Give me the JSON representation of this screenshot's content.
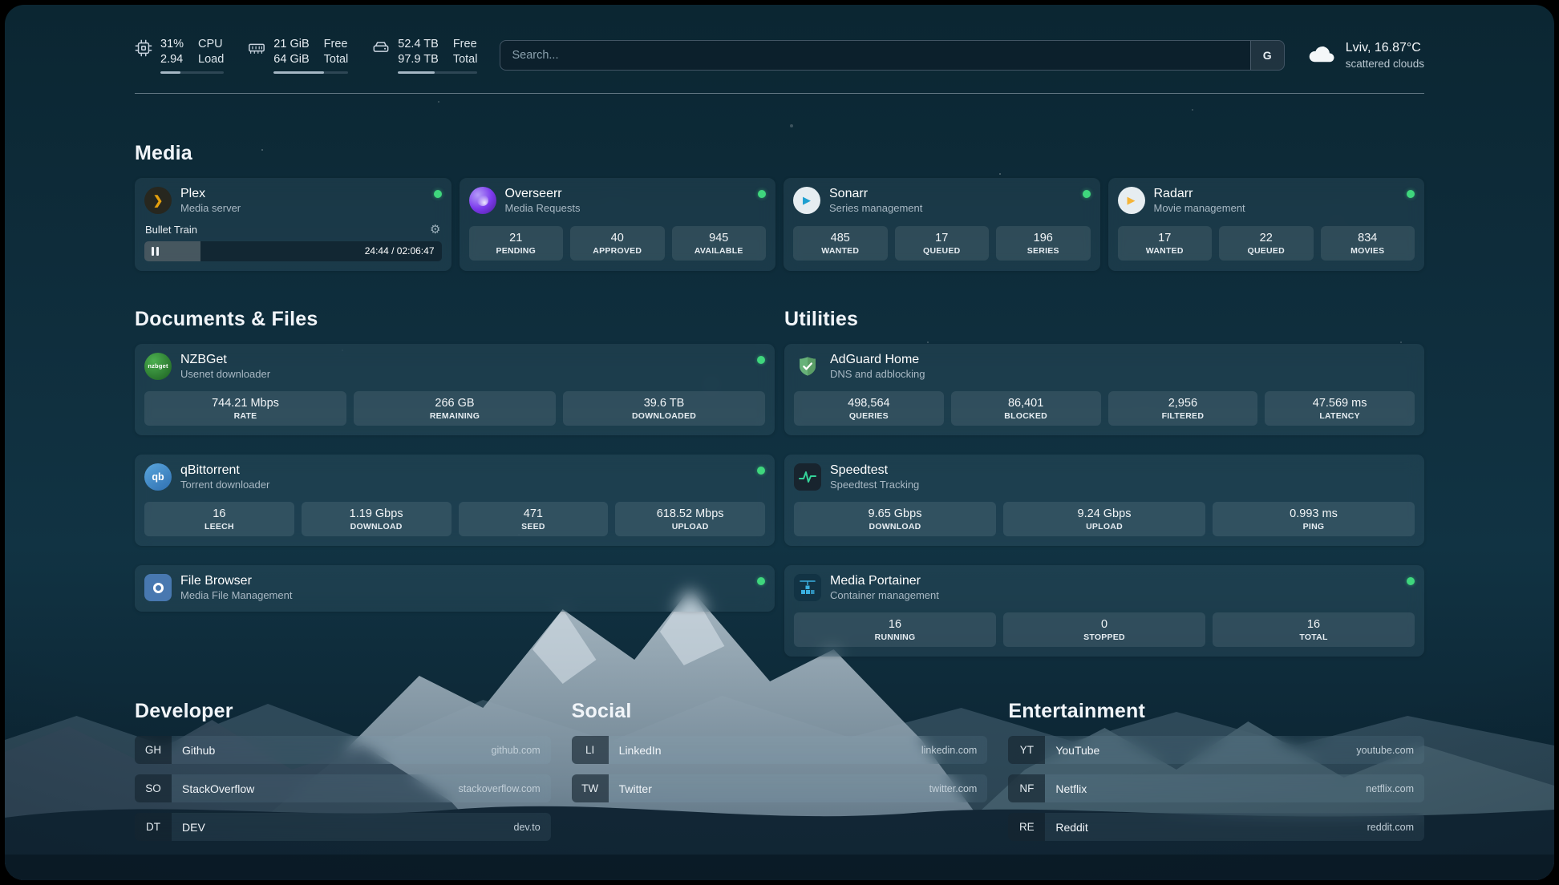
{
  "header": {
    "resources": {
      "cpu": {
        "value": "31%",
        "label": "CPU",
        "value2": "2.94",
        "label2": "Load",
        "percent": 31
      },
      "memory": {
        "value": "21 GiB",
        "label": "Free",
        "value2": "64 GiB",
        "label2": "Total",
        "percent": 67
      },
      "disk": {
        "value": "52.4 TB",
        "label": "Free",
        "value2": "97.9 TB",
        "label2": "Total",
        "percent": 46
      }
    },
    "search": {
      "placeholder": "Search...",
      "provider": "G"
    },
    "weather": {
      "location": "Lviv, 16.87°C",
      "condition": "scattered clouds"
    }
  },
  "sections": {
    "media": {
      "title": "Media",
      "services": [
        {
          "name": "Plex",
          "subtitle": "Media server",
          "status": "online",
          "now_playing": {
            "title": "Bullet Train",
            "time": "24:44 / 02:06:47",
            "state": "paused",
            "progress_percent": 19
          }
        },
        {
          "name": "Overseerr",
          "subtitle": "Media Requests",
          "status": "online",
          "stats": [
            {
              "value": "21",
              "label": "PENDING"
            },
            {
              "value": "40",
              "label": "APPROVED"
            },
            {
              "value": "945",
              "label": "AVAILABLE"
            }
          ]
        },
        {
          "name": "Sonarr",
          "subtitle": "Series management",
          "status": "online",
          "stats": [
            {
              "value": "485",
              "label": "WANTED"
            },
            {
              "value": "17",
              "label": "QUEUED"
            },
            {
              "value": "196",
              "label": "SERIES"
            }
          ]
        },
        {
          "name": "Radarr",
          "subtitle": "Movie management",
          "status": "online",
          "stats": [
            {
              "value": "17",
              "label": "WANTED"
            },
            {
              "value": "22",
              "label": "QUEUED"
            },
            {
              "value": "834",
              "label": "MOVIES"
            }
          ]
        }
      ]
    },
    "documents": {
      "title": "Documents & Files",
      "services": [
        {
          "name": "NZBGet",
          "subtitle": "Usenet downloader",
          "status": "online",
          "stats": [
            {
              "value": "744.21 Mbps",
              "label": "RATE"
            },
            {
              "value": "266 GB",
              "label": "REMAINING"
            },
            {
              "value": "39.6 TB",
              "label": "DOWNLOADED"
            }
          ]
        },
        {
          "name": "qBittorrent",
          "subtitle": "Torrent downloader",
          "status": "online",
          "stats": [
            {
              "value": "16",
              "label": "LEECH"
            },
            {
              "value": "1.19 Gbps",
              "label": "DOWNLOAD"
            },
            {
              "value": "471",
              "label": "SEED"
            },
            {
              "value": "618.52 Mbps",
              "label": "UPLOAD"
            }
          ]
        },
        {
          "name": "File Browser",
          "subtitle": "Media File Management",
          "status": "online",
          "stats": []
        }
      ]
    },
    "utilities": {
      "title": "Utilities",
      "services": [
        {
          "name": "AdGuard Home",
          "subtitle": "DNS and adblocking",
          "stats": [
            {
              "value": "498,564",
              "label": "QUERIES"
            },
            {
              "value": "86,401",
              "label": "BLOCKED"
            },
            {
              "value": "2,956",
              "label": "FILTERED"
            },
            {
              "value": "47.569 ms",
              "label": "LATENCY"
            }
          ]
        },
        {
          "name": "Speedtest",
          "subtitle": "Speedtest Tracking",
          "stats": [
            {
              "value": "9.65 Gbps",
              "label": "DOWNLOAD"
            },
            {
              "value": "9.24 Gbps",
              "label": "UPLOAD"
            },
            {
              "value": "0.993 ms",
              "label": "PING"
            }
          ]
        },
        {
          "name": "Media Portainer",
          "subtitle": "Container management",
          "status": "online",
          "stats": [
            {
              "value": "16",
              "label": "RUNNING"
            },
            {
              "value": "0",
              "label": "STOPPED"
            },
            {
              "value": "16",
              "label": "TOTAL"
            }
          ]
        }
      ]
    },
    "bookmarks": [
      {
        "title": "Developer",
        "items": [
          {
            "abbr": "GH",
            "name": "Github",
            "domain": "github.com"
          },
          {
            "abbr": "SO",
            "name": "StackOverflow",
            "domain": "stackoverflow.com"
          },
          {
            "abbr": "DT",
            "name": "DEV",
            "domain": "dev.to"
          }
        ]
      },
      {
        "title": "Social",
        "items": [
          {
            "abbr": "LI",
            "name": "LinkedIn",
            "domain": "linkedin.com"
          },
          {
            "abbr": "TW",
            "name": "Twitter",
            "domain": "twitter.com"
          }
        ]
      },
      {
        "title": "Entertainment",
        "items": [
          {
            "abbr": "YT",
            "name": "YouTube",
            "domain": "youtube.com"
          },
          {
            "abbr": "NF",
            "name": "Netflix",
            "domain": "netflix.com"
          },
          {
            "abbr": "RE",
            "name": "Reddit",
            "domain": "reddit.com"
          }
        ]
      }
    ]
  },
  "icons": {
    "nzbget_text": "nzbget",
    "qbit_text": "qb",
    "plex_chevron": "❯",
    "play_glyph": "▶",
    "gear_glyph": "⚙"
  },
  "colors": {
    "online": "#3fd67d",
    "plex_gold": "#e5a00d",
    "accent_green": "#34d399"
  }
}
